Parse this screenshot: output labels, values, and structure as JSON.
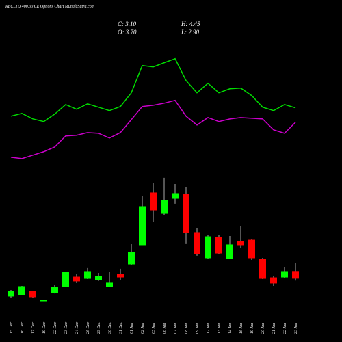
{
  "chart_data": {
    "type": "candlestick",
    "title": "RECLTD 400.00 CE Options Chart MunafaSutra.com",
    "annotations": [
      "C: 3.10",
      "H: 4.45",
      "O: 3.70",
      "L: 2.90"
    ],
    "categories": [
      "15 Dec",
      "16 Dec",
      "17 Dec",
      "19 Dec",
      "22 Dec",
      "23 Dec",
      "24 Dec",
      "26 Dec",
      "29 Dec",
      "30 Dec",
      "31 Dec",
      "01 Jan",
      "02 Jan",
      "05 Jan",
      "06 Jan",
      "07 Jan",
      "08 Jan",
      "09 Jan",
      "12 Jan",
      "13 Jan",
      "14 Jan",
      "16 Jan",
      "19 Jan",
      "20 Jan",
      "21 Jan",
      "22 Jan",
      "23 Jan"
    ],
    "open": [
      1.55,
      1.67,
      1.96,
      1.13,
      1.84,
      2.38,
      3.21,
      3.09,
      2.97,
      2.38,
      3.45,
      4.34,
      6.01,
      10.53,
      8.74,
      10.05,
      10.41,
      7.08,
      4.88,
      6.66,
      4.82,
      6.31,
      6.42,
      4.76,
      3.15,
      3.21,
      3.7
    ],
    "high": [
      2.08,
      2.44,
      2.02,
      1.19,
      2.5,
      3.69,
      3.45,
      3.99,
      3.57,
      3.69,
      3.93,
      6.07,
      10.23,
      11.36,
      11.84,
      11.3,
      11.0,
      7.44,
      6.84,
      6.84,
      6.78,
      7.67,
      6.48,
      4.88,
      3.27,
      4.1,
      4.45
    ],
    "low": [
      1.37,
      1.61,
      1.43,
      1.13,
      1.78,
      2.38,
      2.68,
      3.03,
      2.86,
      2.32,
      2.97,
      4.28,
      6.01,
      7.97,
      8.57,
      9.58,
      6.13,
      5.06,
      4.76,
      5.18,
      4.82,
      5.77,
      4.7,
      3.03,
      2.44,
      3.15,
      2.9
    ],
    "close": [
      1.96,
      2.38,
      1.49,
      1.19,
      2.32,
      3.63,
      2.86,
      3.69,
      3.27,
      2.68,
      3.21,
      5.35,
      9.34,
      9.04,
      9.87,
      10.47,
      7.08,
      5.23,
      6.72,
      5.29,
      6.01,
      6.01,
      4.88,
      3.09,
      2.68,
      3.69,
      3.1
    ],
    "up_color": "#00ff00",
    "down_color": "#ff0000",
    "overlays": [
      {
        "color": "#00dd00",
        "values": [
          17.2,
          17.44,
          16.96,
          16.73,
          17.38,
          18.21,
          17.8,
          18.27,
          17.98,
          17.68,
          18.04,
          19.23,
          21.61,
          21.49,
          21.85,
          22.2,
          20.3,
          19.23,
          20.06,
          19.23,
          19.58,
          19.64,
          18.99,
          17.98,
          17.68,
          18.21,
          17.92
        ]
      },
      {
        "color": "#cc00cc",
        "values": [
          13.63,
          13.51,
          13.81,
          14.11,
          14.52,
          15.48,
          15.54,
          15.77,
          15.71,
          15.3,
          15.77,
          16.9,
          18.04,
          18.15,
          18.33,
          18.57,
          17.2,
          16.43,
          17.08,
          16.73,
          16.96,
          17.08,
          17.02,
          16.96,
          16.01,
          15.71,
          16.67
        ]
      }
    ],
    "ylim": [
      0,
      27.3
    ]
  }
}
